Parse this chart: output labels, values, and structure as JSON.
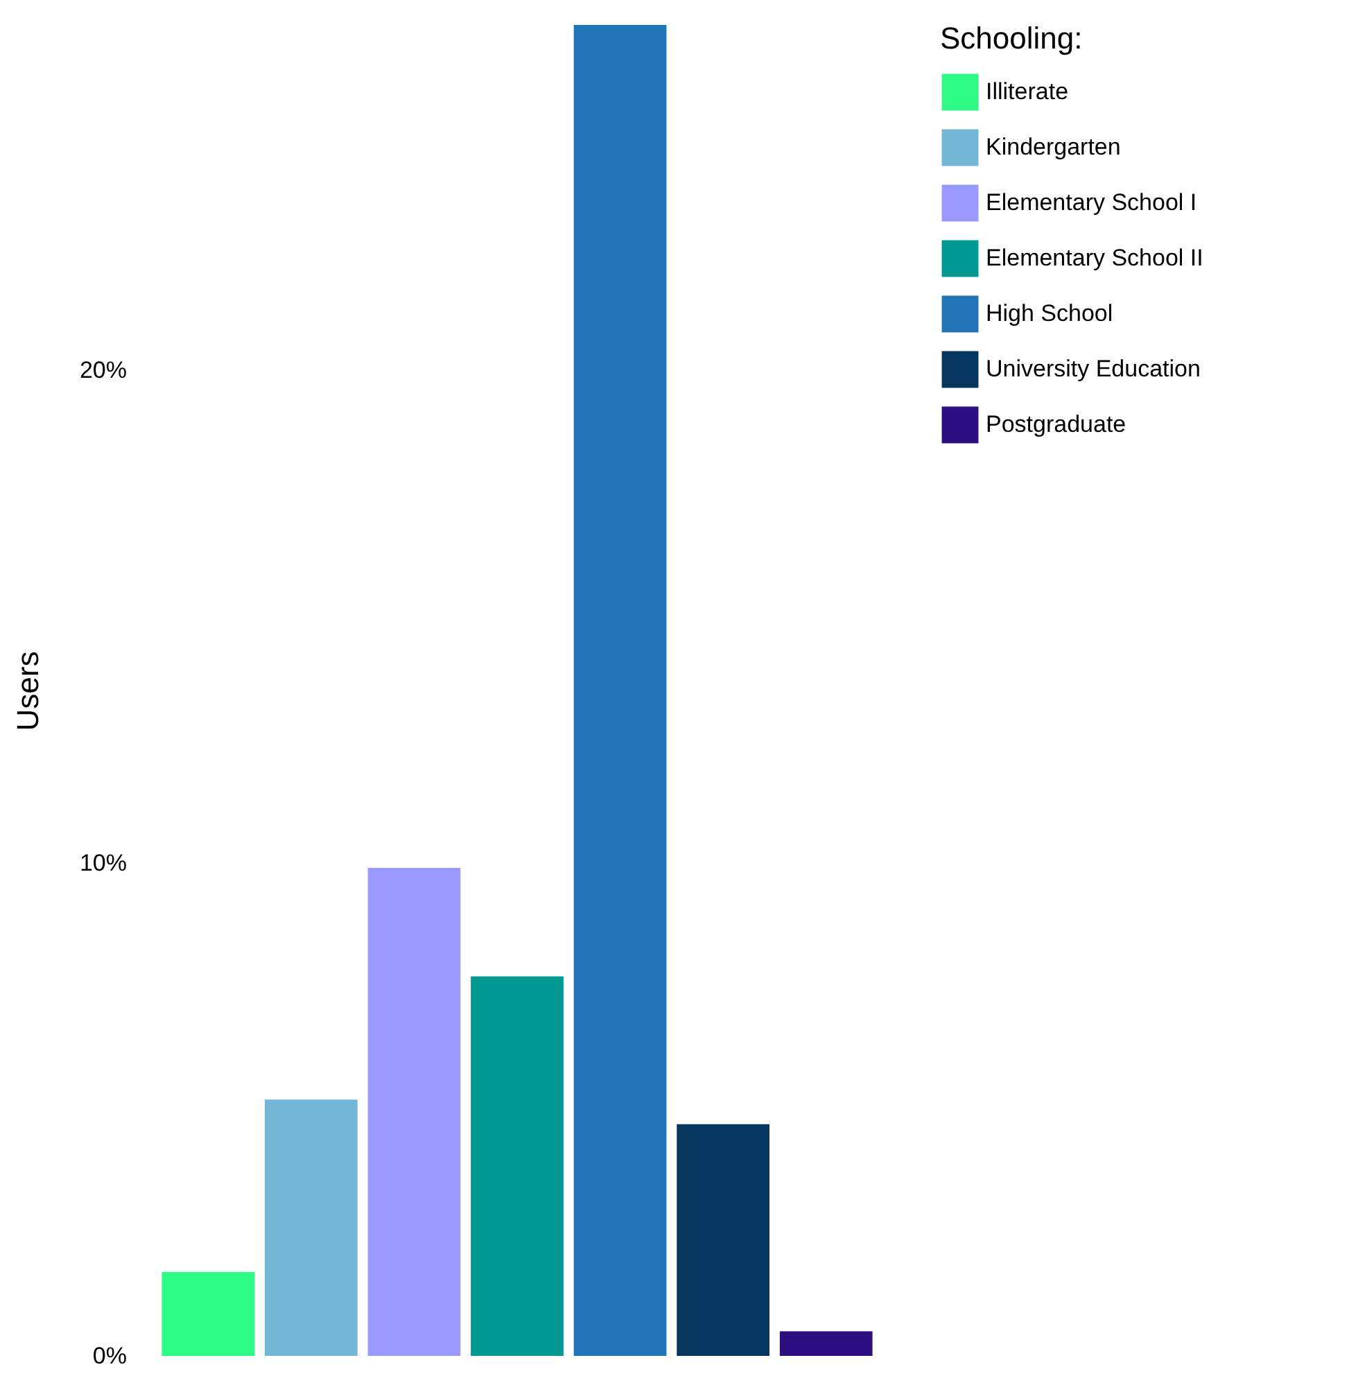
{
  "chart_data": {
    "type": "bar",
    "ylabel": "Users",
    "legend_title": "Schooling:",
    "legend": "right",
    "tick_labels": "y",
    "grid": false,
    "stacked": true,
    "categories": [
      null,
      null,
      null,
      null,
      null,
      null,
      null
    ],
    "series": [
      {
        "name": "Illiterate",
        "color": "#2efa86",
        "values": [
          1.7,
          null,
          null,
          null,
          null,
          null,
          null
        ]
      },
      {
        "name": "Kindergarten",
        "color": "#73b6d6",
        "values": [
          null,
          5.2,
          null,
          null,
          null,
          null,
          null
        ]
      },
      {
        "name": "Elementary School I",
        "color": "#9999ff",
        "values": [
          null,
          null,
          9.9,
          null,
          null,
          null,
          null
        ]
      },
      {
        "name": "Elementary School II",
        "color": "#009991",
        "values": [
          null,
          null,
          null,
          7.7,
          null,
          null,
          null
        ]
      },
      {
        "name": "High School",
        "color": "#2275b5",
        "values": [
          null,
          null,
          null,
          null,
          27.0,
          null,
          null
        ]
      },
      {
        "name": "University Education",
        "color": "#07375e",
        "values": [
          null,
          null,
          null,
          null,
          null,
          4.7,
          null
        ]
      },
      {
        "name": "Postgraduate",
        "color": "#2e0f82",
        "values": [
          null,
          null,
          null,
          null,
          null,
          null,
          0.5
        ]
      }
    ],
    "ylim": [
      0,
      27.0
    ],
    "yticks": [
      {
        "value": 0,
        "label": "0%"
      },
      {
        "value": 10,
        "label": "10%"
      },
      {
        "value": 20,
        "label": "20%"
      }
    ]
  }
}
